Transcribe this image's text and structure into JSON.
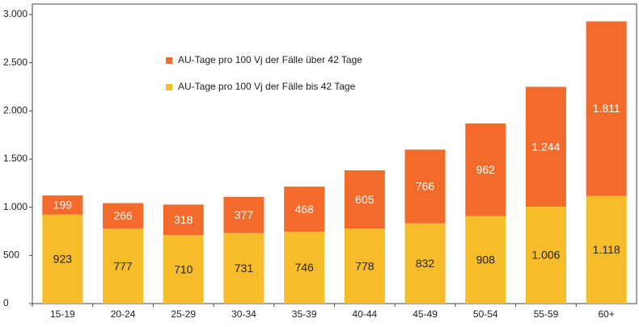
{
  "chart_data": {
    "type": "stacked_bar",
    "categories": [
      "15-19",
      "20-24",
      "25-29",
      "30-34",
      "35-39",
      "40-44",
      "45-49",
      "50-54",
      "55-59",
      "60+"
    ],
    "series": [
      {
        "name": "AU-Tage pro 100 Vj der Fälle bis 42 Tage",
        "color": "#f6bc2a",
        "values": [
          923,
          777,
          710,
          731,
          746,
          778,
          832,
          908,
          1006,
          1118
        ],
        "value_labels": [
          "923",
          "777",
          "710",
          "731",
          "746",
          "778",
          "832",
          "908",
          "1.006",
          "1.118"
        ]
      },
      {
        "name": "AU-Tage pro 100 Vj der Fälle über 42 Tage",
        "color": "#f26b2a",
        "values": [
          199,
          266,
          318,
          377,
          468,
          605,
          766,
          962,
          1244,
          1811
        ],
        "value_labels": [
          "199",
          "266",
          "318",
          "377",
          "468",
          "605",
          "766",
          "962",
          "1.244",
          "1.811"
        ]
      }
    ],
    "ylim": [
      0,
      3000
    ],
    "yticks": [
      0,
      500,
      {
        "value": 1000,
        "label": "1.000"
      },
      {
        "value": 1500,
        "label": "1.500"
      },
      {
        "value": 2000,
        "label": "2.000"
      },
      {
        "value": 2500,
        "label": "2.500"
      },
      {
        "value": 3000,
        "label": "3.000"
      }
    ]
  }
}
